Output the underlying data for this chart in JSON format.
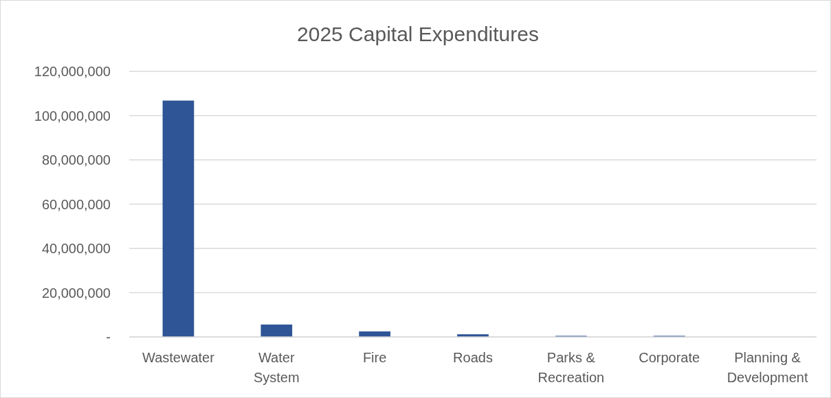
{
  "chart_data": {
    "type": "bar",
    "title": "2025 Capital Expenditures",
    "categories": [
      "Wastewater",
      "Water System",
      "Fire",
      "Roads",
      "Parks & Recreation",
      "Corporate",
      "Planning & Development"
    ],
    "values": [
      106800000,
      5600000,
      2500000,
      1200000,
      500000,
      500000,
      0
    ],
    "color": "#2f5597",
    "ylim": [
      0,
      120000000
    ],
    "yticks": [
      {
        "value": 0,
        "label": "-"
      },
      {
        "value": 20000000,
        "label": "20,000,000"
      },
      {
        "value": 40000000,
        "label": "40,000,000"
      },
      {
        "value": 60000000,
        "label": "60,000,000"
      },
      {
        "value": 80000000,
        "label": "80,000,000"
      },
      {
        "value": 100000000,
        "label": "100,000,000"
      },
      {
        "value": 120000000,
        "label": "120,000,000"
      }
    ],
    "grid": "y"
  }
}
